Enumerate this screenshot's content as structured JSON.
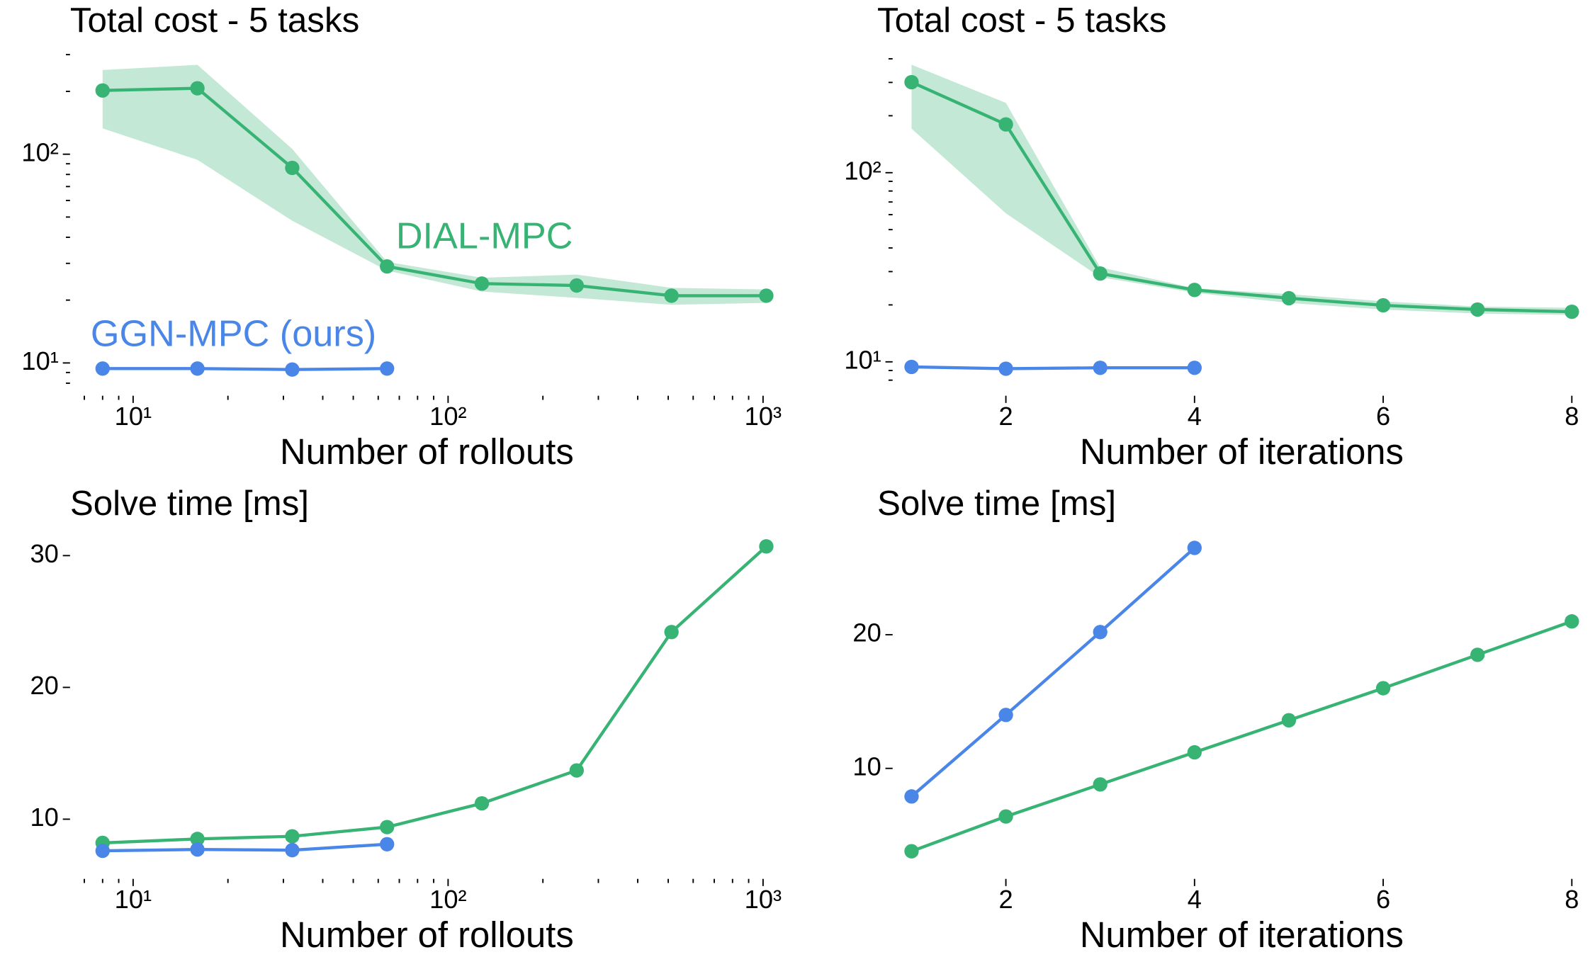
{
  "chart_data": [
    {
      "type": "line",
      "title": "Total cost - 5 tasks",
      "xlabel": "Number of rollouts",
      "xlog": true,
      "ylog": true,
      "x": [
        8,
        16,
        32,
        64,
        128,
        256,
        512,
        1024
      ],
      "xlim": [
        6.9,
        1062
      ],
      "ylim": [
        7.8,
        329
      ],
      "xticks": [
        {
          "value": 10,
          "label": "10¹"
        },
        {
          "value": 100,
          "label": "10²"
        },
        {
          "value": 1000,
          "label": "10³"
        }
      ],
      "xminor": [
        7,
        8,
        9,
        20,
        30,
        40,
        50,
        60,
        70,
        80,
        90,
        200,
        300,
        400,
        500,
        600,
        700,
        800,
        900
      ],
      "yticks": [
        {
          "value": 10,
          "label": "10¹"
        },
        {
          "value": 100,
          "label": "10²"
        }
      ],
      "yminor": [
        8,
        9,
        20,
        30,
        40,
        50,
        60,
        70,
        80,
        90,
        200,
        300
      ],
      "series": [
        {
          "name": "DIAL-MPC",
          "color": "#37b374",
          "values": [
            202,
            207,
            86,
            29,
            24,
            23.5,
            21,
            21
          ],
          "upper": [
            253,
            268,
            106,
            30.5,
            25.6,
            26.5,
            22.9,
            22.5
          ],
          "lower": [
            133,
            94,
            48,
            27.7,
            22,
            20.5,
            19,
            19.4
          ]
        },
        {
          "name": "GGN-MPC (ours)",
          "color": "#4a86e8",
          "values": [
            9.4,
            9.4,
            9.3,
            9.4,
            null,
            null,
            null,
            null
          ]
        }
      ],
      "annotations": [
        {
          "text": "DIAL-MPC",
          "color": "#37b374"
        },
        {
          "text": "GGN-MPC (ours)",
          "color": "#4a86e8"
        }
      ]
    },
    {
      "type": "line",
      "title": "Total cost - 5 tasks",
      "xlabel": "Number of iterations",
      "xlog": false,
      "ylog": true,
      "x": [
        1,
        2,
        3,
        4,
        5,
        6,
        7,
        8
      ],
      "xlim": [
        0.93,
        8.07
      ],
      "ylim": [
        7.5,
        466
      ],
      "xticks": [
        2,
        4,
        6,
        8
      ],
      "yticks": [
        {
          "value": 10,
          "label": "10¹"
        },
        {
          "value": 100,
          "label": "10²"
        }
      ],
      "yminor": [
        8,
        9,
        20,
        30,
        40,
        50,
        60,
        70,
        80,
        90,
        200,
        300,
        400
      ],
      "series": [
        {
          "name": "DIAL-MPC",
          "color": "#37b374",
          "values": [
            301,
            180,
            29.3,
            24,
            21.7,
            19.9,
            18.9,
            18.4
          ],
          "upper": [
            372,
            234,
            31.6,
            24.5,
            22.8,
            20.9,
            19.6,
            19.3
          ],
          "lower": [
            171,
            61,
            28,
            23.2,
            20.5,
            18.9,
            18,
            17.7
          ]
        },
        {
          "name": "GGN-MPC (ours)",
          "color": "#4a86e8",
          "values": [
            9.4,
            9.2,
            9.3,
            9.3,
            null,
            null,
            null,
            null
          ]
        }
      ]
    },
    {
      "type": "line",
      "title": "Solve time [ms]",
      "xlabel": "Number of rollouts",
      "xlog": true,
      "ylog": false,
      "x": [
        8,
        16,
        32,
        64,
        128,
        256,
        512,
        1024
      ],
      "xlim": [
        6.9,
        1062
      ],
      "ylim": [
        6.25,
        31.6
      ],
      "xticks": [
        {
          "value": 10,
          "label": "10¹"
        },
        {
          "value": 100,
          "label": "10²"
        },
        {
          "value": 1000,
          "label": "10³"
        }
      ],
      "xminor": [
        7,
        8,
        9,
        20,
        30,
        40,
        50,
        60,
        70,
        80,
        90,
        200,
        300,
        400,
        500,
        600,
        700,
        800,
        900
      ],
      "yticks": [
        10,
        20,
        30
      ],
      "series": [
        {
          "name": "DIAL-MPC",
          "color": "#37b374",
          "values": [
            8.2,
            8.5,
            8.7,
            9.4,
            11.2,
            13.7,
            24.2,
            30.7
          ]
        },
        {
          "name": "GGN-MPC (ours)",
          "color": "#4a86e8",
          "values": [
            7.6,
            7.7,
            7.65,
            8.1,
            null,
            null,
            null,
            null
          ]
        }
      ]
    },
    {
      "type": "line",
      "title": "Solve time [ms]",
      "xlabel": "Number of iterations",
      "xlog": false,
      "ylog": false,
      "x": [
        1,
        2,
        3,
        4,
        5,
        6,
        7,
        8
      ],
      "xlim": [
        0.93,
        8.07
      ],
      "ylim": [
        2.5,
        27.5
      ],
      "xticks": [
        2,
        4,
        6,
        8
      ],
      "yticks": [
        10,
        20
      ],
      "series": [
        {
          "name": "DIAL-MPC",
          "color": "#37b374",
          "values": [
            3.8,
            6.4,
            8.8,
            11.2,
            13.6,
            16.0,
            18.5,
            21.0
          ]
        },
        {
          "name": "GGN-MPC (ours)",
          "color": "#4a86e8",
          "values": [
            7.9,
            14.0,
            20.2,
            26.5,
            null,
            null,
            null,
            null
          ]
        }
      ]
    }
  ]
}
